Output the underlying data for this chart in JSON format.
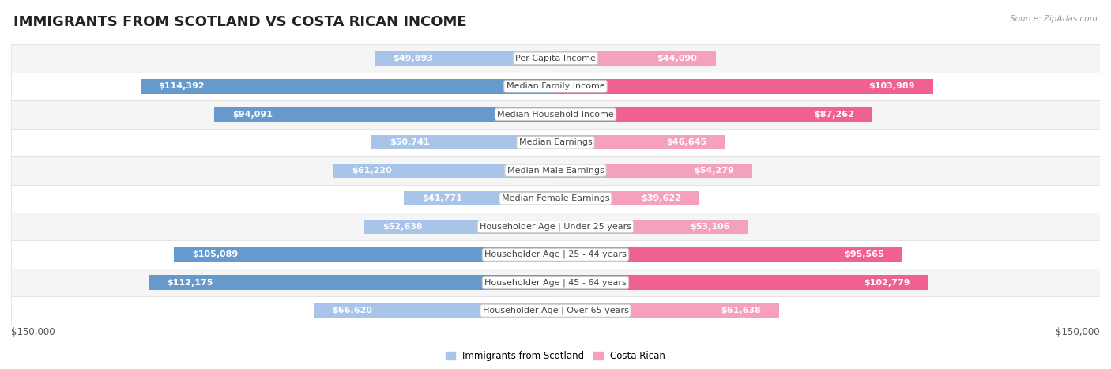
{
  "title": "IMMIGRANTS FROM SCOTLAND VS COSTA RICAN INCOME",
  "source": "Source: ZipAtlas.com",
  "categories": [
    "Per Capita Income",
    "Median Family Income",
    "Median Household Income",
    "Median Earnings",
    "Median Male Earnings",
    "Median Female Earnings",
    "Householder Age | Under 25 years",
    "Householder Age | 25 - 44 years",
    "Householder Age | 45 - 64 years",
    "Householder Age | Over 65 years"
  ],
  "scotland_values": [
    49893,
    114392,
    94091,
    50741,
    61220,
    41771,
    52638,
    105089,
    112175,
    66620
  ],
  "costarican_values": [
    44090,
    103989,
    87262,
    46645,
    54279,
    39622,
    53106,
    95565,
    102779,
    61638
  ],
  "scotland_color_light": "#A8C4E8",
  "scotland_color_dark": "#6699CC",
  "costarican_color_light": "#F5A0BE",
  "costarican_color_dark": "#F06090",
  "scotland_label": "Immigrants from Scotland",
  "costarican_label": "Costa Rican",
  "max_value": 150000,
  "bar_height": 0.52,
  "row_bg_light": "#F5F5F5",
  "row_bg_dark": "#FFFFFF",
  "title_fontsize": 13,
  "label_fontsize": 8,
  "value_fontsize": 8,
  "source_fontsize": 7.5,
  "axis_label": "$150,000",
  "large_threshold": 70000,
  "medium_threshold": 35000
}
